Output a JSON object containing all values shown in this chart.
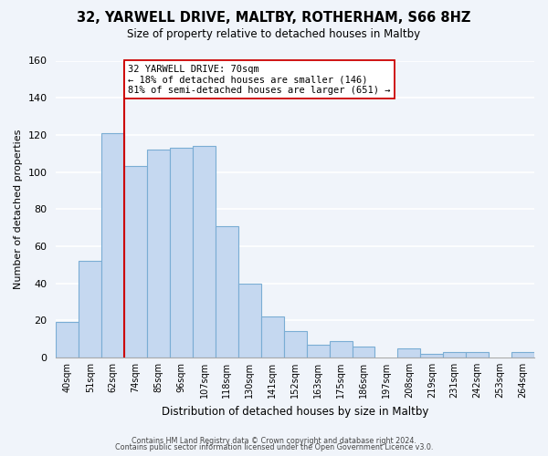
{
  "title": "32, YARWELL DRIVE, MALTBY, ROTHERHAM, S66 8HZ",
  "subtitle": "Size of property relative to detached houses in Maltby",
  "xlabel": "Distribution of detached houses by size in Maltby",
  "ylabel": "Number of detached properties",
  "bar_labels": [
    "40sqm",
    "51sqm",
    "62sqm",
    "74sqm",
    "85sqm",
    "96sqm",
    "107sqm",
    "118sqm",
    "130sqm",
    "141sqm",
    "152sqm",
    "163sqm",
    "175sqm",
    "186sqm",
    "197sqm",
    "208sqm",
    "219sqm",
    "231sqm",
    "242sqm",
    "253sqm",
    "264sqm"
  ],
  "bar_heights": [
    19,
    52,
    121,
    103,
    112,
    113,
    114,
    71,
    40,
    22,
    14,
    7,
    9,
    6,
    0,
    5,
    2,
    3,
    3,
    0,
    3
  ],
  "bar_color": "#c5d8f0",
  "bar_edgecolor": "#7aadd4",
  "background_color": "#f0f4fa",
  "grid_color": "#ffffff",
  "vline_color": "#cc0000",
  "annotation_text": "32 YARWELL DRIVE: 70sqm\n← 18% of detached houses are smaller (146)\n81% of semi-detached houses are larger (651) →",
  "annotation_box_edgecolor": "#cc0000",
  "ylim": [
    0,
    160
  ],
  "yticks": [
    0,
    20,
    40,
    60,
    80,
    100,
    120,
    140,
    160
  ],
  "footer1": "Contains HM Land Registry data © Crown copyright and database right 2024.",
  "footer2": "Contains public sector information licensed under the Open Government Licence v3.0."
}
